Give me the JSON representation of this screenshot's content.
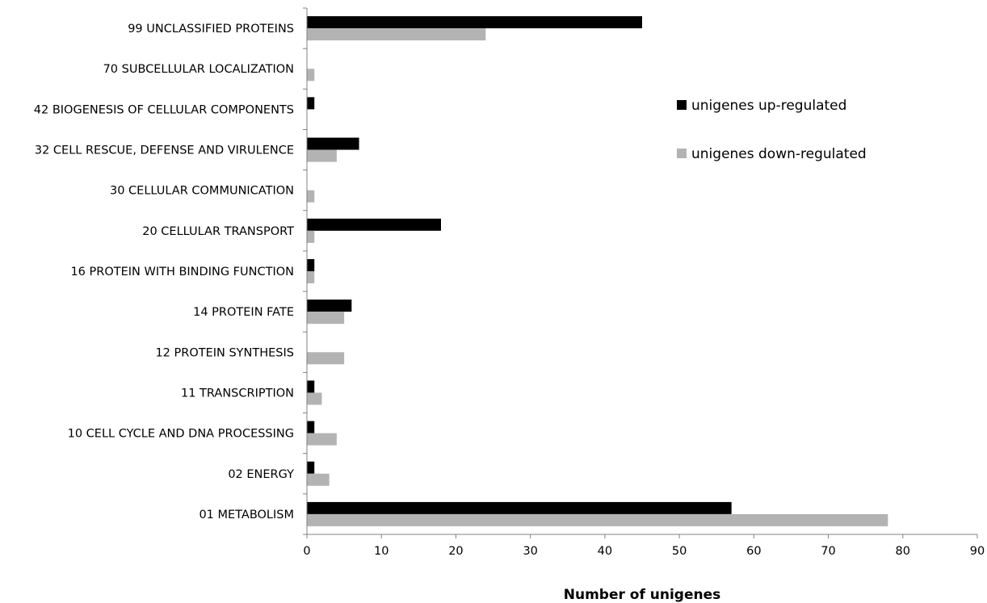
{
  "chart_data": {
    "type": "bar",
    "orientation": "horizontal",
    "categories": [
      "99 UNCLASSIFIED PROTEINS",
      "70 SUBCELLULAR LOCALIZATION",
      "42 BIOGENESIS OF CELLULAR COMPONENTS",
      "32 CELL RESCUE, DEFENSE AND VIRULENCE",
      "30 CELLULAR COMMUNICATION",
      "20 CELLULAR TRANSPORT",
      "16 PROTEIN WITH BINDING FUNCTION",
      "14 PROTEIN FATE",
      "12 PROTEIN SYNTHESIS",
      "11 TRANSCRIPTION",
      "10 CELL CYCLE AND DNA PROCESSING",
      "02 ENERGY",
      "01 METABOLISM"
    ],
    "series": [
      {
        "name": "unigenes up-regulated",
        "color": "#000000",
        "values": [
          45,
          0,
          1,
          7,
          0,
          18,
          1,
          6,
          0,
          1,
          1,
          1,
          57
        ]
      },
      {
        "name": "unigenes down-regulated",
        "color": "#b3b3b3",
        "values": [
          24,
          1,
          0,
          4,
          1,
          1,
          1,
          5,
          5,
          2,
          4,
          3,
          78
        ]
      }
    ],
    "xlabel": "Number of unigenes",
    "ylabel": "",
    "title": "",
    "xlim": [
      0,
      90
    ],
    "xticks": [
      "0",
      "10",
      "20",
      "30",
      "40",
      "50",
      "60",
      "70",
      "80",
      "90"
    ],
    "grid": false,
    "legend_position": "right"
  }
}
